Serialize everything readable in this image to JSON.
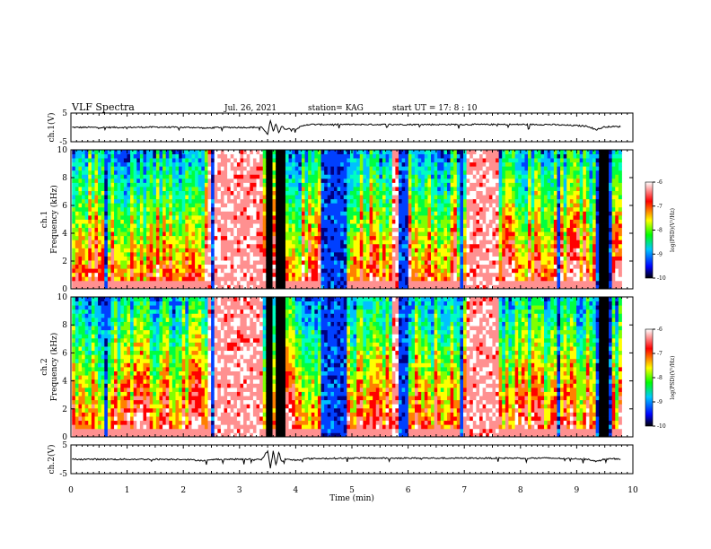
{
  "header": {
    "title": "VLF Spectra",
    "date": "Jul. 26, 2021",
    "station": "station= KAG",
    "start_ut": "start UT =  17: 8  : 10"
  },
  "chart_data": [
    {
      "type": "line",
      "name": "ch1-waveform",
      "ylabel": "ch.1(V)",
      "ylim": [
        -5,
        5
      ],
      "yticks": [
        "5",
        "-5"
      ],
      "xlim": [
        0,
        10
      ],
      "series": [
        {
          "x": [
            0,
            0.5,
            1,
            1.5,
            2,
            2.2,
            2.4,
            2.6,
            3,
            3.4,
            3.5,
            3.55,
            3.6,
            3.65,
            3.7,
            3.75,
            3.8,
            4,
            4.2,
            4.5,
            5,
            6,
            7,
            7.5,
            8,
            8.5,
            9,
            9.2,
            9.35,
            9.5,
            9.8
          ],
          "y": [
            0,
            0,
            0,
            0.1,
            0,
            0,
            -0.3,
            0,
            0,
            0,
            -2.5,
            2.5,
            -1.5,
            1.5,
            -2,
            0.5,
            -0.5,
            -0.5,
            1,
            1,
            1,
            1,
            1,
            1,
            1,
            1,
            0.6,
            0.4,
            -0.8,
            0.2,
            0.3
          ]
        }
      ]
    },
    {
      "type": "heatmap",
      "name": "ch1-spectrogram",
      "ylabel": "ch.1\nFrequency (kHz)",
      "ylim": [
        0,
        10
      ],
      "yticks": [
        "0",
        "2",
        "4",
        "6",
        "8",
        "10"
      ],
      "xlim": [
        0,
        10
      ],
      "colorbar": {
        "label": "log(PSD)(V²/Hz)",
        "range": [
          -10,
          -6
        ],
        "ticks": [
          "-6",
          "-7",
          "-8",
          "-9",
          "-10"
        ]
      },
      "blue_bands": [
        [
          0.55,
          0.6
        ],
        [
          2.45,
          2.5
        ],
        [
          4.4,
          4.9
        ],
        [
          5.8,
          5.95
        ],
        [
          6.9,
          6.95
        ],
        [
          8.6,
          8.7
        ],
        [
          9.3,
          9.6
        ]
      ],
      "black_bands": [
        [
          3.45,
          3.55
        ],
        [
          3.62,
          3.68
        ],
        [
          3.7,
          3.78
        ],
        [
          9.35,
          9.55
        ]
      ],
      "quiet_intervals": [
        [
          2.4,
          3.4
        ],
        [
          5.7,
          5.9
        ],
        [
          7.0,
          7.6
        ]
      ]
    },
    {
      "type": "heatmap",
      "name": "ch2-spectrogram",
      "ylabel": "ch.2\nFrequency (kHz)",
      "ylim": [
        0,
        10
      ],
      "yticks": [
        "0",
        "2",
        "4",
        "6",
        "8",
        "10"
      ],
      "xlim": [
        0,
        10
      ],
      "colorbar": {
        "label": "log(PSD)(V²/Hz)",
        "range": [
          -10,
          -6
        ],
        "ticks": [
          "-6",
          "-7",
          "-8",
          "-9",
          "-10"
        ]
      },
      "blue_bands": [
        [
          0.55,
          0.6
        ],
        [
          2.45,
          2.5
        ],
        [
          4.4,
          4.9
        ],
        [
          5.8,
          5.95
        ],
        [
          6.9,
          6.95
        ],
        [
          8.6,
          8.7
        ],
        [
          9.3,
          9.6
        ]
      ],
      "black_bands": [
        [
          3.45,
          3.55
        ],
        [
          3.62,
          3.68
        ],
        [
          3.7,
          3.78
        ],
        [
          9.35,
          9.55
        ]
      ],
      "quiet_intervals": [
        [
          2.4,
          3.4
        ],
        [
          5.7,
          5.9
        ],
        [
          7.0,
          7.6
        ]
      ]
    },
    {
      "type": "line",
      "name": "ch2-waveform",
      "ylabel": "ch.2(V)",
      "ylim": [
        -5,
        5
      ],
      "yticks": [
        "5",
        "-5"
      ],
      "xlim": [
        0,
        10
      ],
      "xlabel": "Time (min)",
      "xticks": [
        "0",
        "1",
        "2",
        "3",
        "4",
        "5",
        "6",
        "7",
        "8",
        "9",
        "10"
      ],
      "series": [
        {
          "x": [
            0,
            0.5,
            1,
            1.5,
            2,
            2.4,
            2.6,
            3,
            3.4,
            3.5,
            3.55,
            3.6,
            3.65,
            3.7,
            3.75,
            3.8,
            4,
            4.2,
            4.5,
            5,
            5.5,
            6,
            7,
            7.5,
            8,
            8.5,
            9,
            9.2,
            9.35,
            9.5,
            9.8
          ],
          "y": [
            0,
            0,
            0,
            0,
            0,
            -0.5,
            0,
            0,
            0,
            3,
            -3,
            3,
            -2,
            2.5,
            -1,
            0,
            -0.3,
            0.2,
            0.3,
            0.4,
            0.4,
            0.4,
            0.4,
            0.4,
            0.4,
            0.4,
            0.2,
            0.1,
            -0.8,
            0.1,
            0.2
          ]
        }
      ]
    }
  ]
}
